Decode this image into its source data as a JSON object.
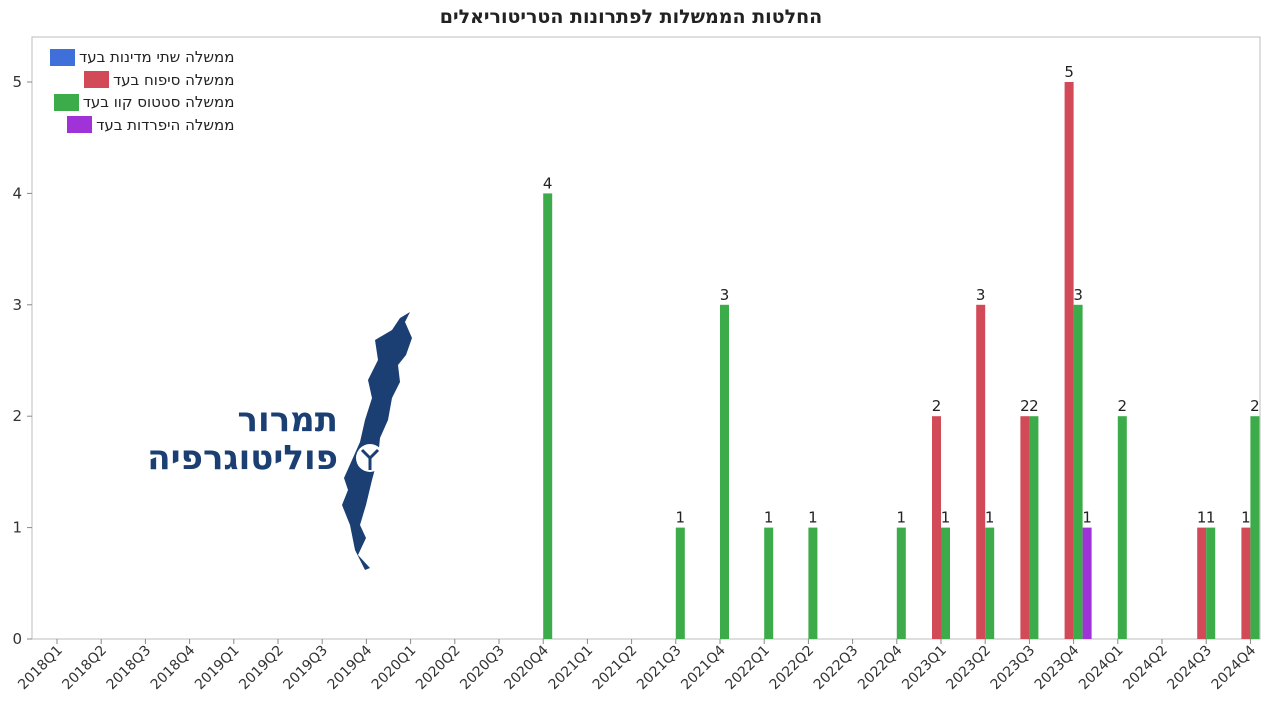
{
  "chart_data": {
    "type": "bar",
    "title": "החלטות הממשלות לפתרונות הטריטוריאלים",
    "categories": [
      "2018Q1",
      "2018Q2",
      "2018Q3",
      "2018Q4",
      "2019Q1",
      "2019Q2",
      "2019Q3",
      "2019Q4",
      "2020Q1",
      "2020Q2",
      "2020Q3",
      "2020Q4",
      "2021Q1",
      "2021Q2",
      "2021Q3",
      "2021Q4",
      "2022Q1",
      "2022Q2",
      "2022Q3",
      "2022Q4",
      "2023Q1",
      "2023Q2",
      "2023Q3",
      "2023Q4",
      "2024Q1",
      "2024Q2",
      "2024Q3",
      "2024Q4"
    ],
    "series": [
      {
        "name": "ממשלה שתי מדינות בעד",
        "color": "#3f6fd8",
        "values": [
          0,
          0,
          0,
          0,
          0,
          0,
          0,
          0,
          0,
          0,
          0,
          0,
          0,
          0,
          0,
          0,
          0,
          0,
          0,
          0,
          0,
          0,
          0,
          0,
          0,
          0,
          0,
          0
        ]
      },
      {
        "name": "ממשלה סיפוח בעד",
        "color": "#d24a58",
        "values": [
          0,
          0,
          0,
          0,
          0,
          0,
          0,
          0,
          0,
          0,
          0,
          0,
          0,
          0,
          0,
          0,
          0,
          0,
          0,
          0,
          2,
          3,
          2,
          5,
          0,
          0,
          1,
          1
        ]
      },
      {
        "name": "ממשלה סטטוס קוו בעד",
        "color": "#3cab4a",
        "values": [
          0,
          0,
          0,
          0,
          0,
          0,
          0,
          0,
          0,
          0,
          0,
          4,
          0,
          0,
          1,
          3,
          1,
          1,
          0,
          1,
          1,
          1,
          2,
          3,
          2,
          0,
          1,
          2
        ]
      },
      {
        "name": "ממשלה היפרדות בעד",
        "color": "#a033d8",
        "values": [
          0,
          0,
          0,
          0,
          0,
          0,
          0,
          0,
          0,
          0,
          0,
          0,
          0,
          0,
          0,
          0,
          0,
          0,
          0,
          0,
          0,
          0,
          0,
          1,
          0,
          0,
          0,
          0
        ]
      }
    ],
    "yticks": [
      "0",
      "1",
      "2",
      "3",
      "4",
      "5"
    ],
    "ylim": [
      0,
      5.5
    ],
    "legend_position": "top-left",
    "grid": false
  },
  "logo": {
    "line1": "תמרור",
    "line2": "פוליטוגרפיה"
  }
}
